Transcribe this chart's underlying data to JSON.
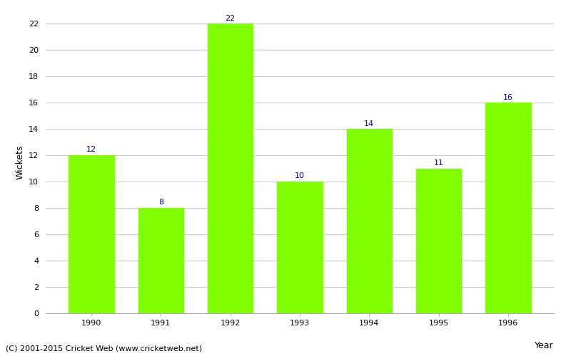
{
  "years": [
    "1990",
    "1991",
    "1992",
    "1993",
    "1994",
    "1995",
    "1996"
  ],
  "values": [
    12,
    8,
    22,
    10,
    14,
    11,
    16
  ],
  "bar_color": "#7FFF00",
  "bar_edge_color": "#7FFF00",
  "xlabel": "Year",
  "ylabel": "Wickets",
  "ylim": [
    0,
    23
  ],
  "yticks": [
    0,
    2,
    4,
    6,
    8,
    10,
    12,
    14,
    16,
    18,
    20,
    22
  ],
  "label_color": "#00008B",
  "label_fontsize": 8,
  "tick_fontsize": 8,
  "caption": "(C) 2001-2015 Cricket Web (www.cricketweb.net)",
  "caption_fontsize": 8,
  "background_color": "#ffffff",
  "grid_color": "#cccccc",
  "xlabel_fontsize": 9,
  "ylabel_fontsize": 9,
  "bar_width": 0.65
}
